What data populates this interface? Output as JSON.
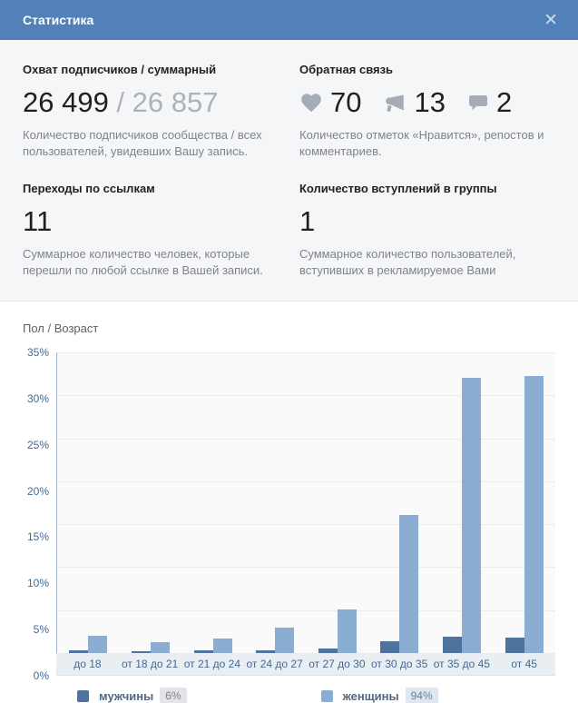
{
  "header": {
    "title": "Статистика",
    "close_glyph": "✕"
  },
  "stats": {
    "reach": {
      "title": "Охват подписчиков / суммарный",
      "value": "26 499",
      "divider": " / ",
      "total": "26 857",
      "description": "Количество подписчиков сообщества / всех пользователей, увидевших Вашу запись."
    },
    "feedback": {
      "title": "Обратная связь",
      "items": [
        {
          "icon": "heart-icon",
          "value": "70"
        },
        {
          "icon": "megaphone-icon",
          "value": "13"
        },
        {
          "icon": "comment-icon",
          "value": "2"
        }
      ],
      "description": "Количество отметок «Нравится», репостов и комментариев."
    },
    "link_clicks": {
      "title": "Переходы по ссылкам",
      "value": "11",
      "description": "Суммарное количество человек, которые перешли по любой ссылке в Вашей записи."
    },
    "group_joins": {
      "title": "Количество вступлений в группы",
      "value": "1",
      "description": "Суммарное количество пользователей, вступивших в рекламируемое Вами"
    }
  },
  "chart_section": {
    "title": "Пол / Возраст"
  },
  "chart_data": {
    "type": "bar",
    "title": "Пол / Возраст",
    "categories": [
      "до 18",
      "от 18 до 21",
      "от 21 до 24",
      "от 24 до 27",
      "от 27 до 30",
      "от 30 до 35",
      "от 35 до 45",
      "от 45"
    ],
    "series": [
      {
        "name": "мужчины",
        "total_share": "6%",
        "color": "#4d739e",
        "values": [
          0.3,
          0.2,
          0.3,
          0.3,
          0.5,
          1.4,
          1.9,
          1.8
        ]
      },
      {
        "name": "женщины",
        "total_share": "94%",
        "color": "#8badd1",
        "values": [
          2.0,
          1.3,
          1.7,
          3.0,
          5.1,
          16.1,
          32.0,
          32.3
        ]
      }
    ],
    "ylabel_ticks": [
      "35%",
      "30%",
      "25%",
      "20%",
      "15%",
      "10%",
      "5%",
      "0%"
    ],
    "ylim": [
      0,
      35
    ],
    "xlabel": "",
    "ylabel": "",
    "grid": true,
    "legend_position": "bottom"
  }
}
